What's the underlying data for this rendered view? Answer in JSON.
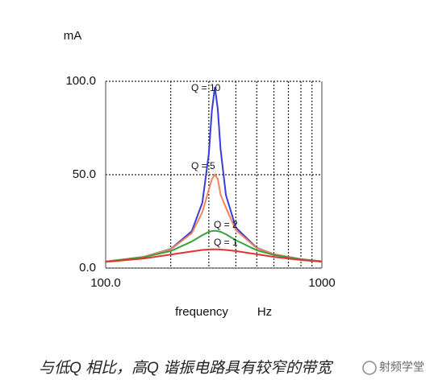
{
  "chart_data": {
    "type": "line",
    "ylabel": "mA",
    "xlabel": "frequency",
    "xunit": "Hz",
    "caption": "与低Q 相比，高Q 谐振电路具有较窄的带宽",
    "watermark": "射频学堂",
    "log_x": true,
    "x": [
      100,
      150,
      200,
      250,
      280,
      300,
      310,
      320,
      330,
      340,
      360,
      400,
      500,
      600,
      800,
      1000
    ],
    "series": [
      {
        "name": "Q = 10",
        "color": "#3b3bd8",
        "values": [
          3.5,
          6.0,
          10.2,
          19.7,
          35.0,
          61.2,
          84.4,
          97,
          85.1,
          63.6,
          39.0,
          21.7,
          10.8,
          7.4,
          4.8,
          3.6
        ]
      },
      {
        "name": "Q = 5",
        "color": "#f0845a",
        "values": [
          3.5,
          6.0,
          10.0,
          18.6,
          29.9,
          42.0,
          47.7,
          50,
          47.8,
          39.3,
          32.3,
          20.3,
          10.6,
          7.4,
          4.7,
          3.6
        ]
      },
      {
        "name": "Q = 2",
        "color": "#3ca03c",
        "values": [
          3.4,
          5.8,
          9.1,
          14.2,
          17.6,
          19.4,
          19.8,
          20,
          19.8,
          19.4,
          18.1,
          14.9,
          9.5,
          7.0,
          4.6,
          3.5
        ]
      },
      {
        "name": "Q = 1",
        "color": "#e03434",
        "values": [
          3.3,
          5.1,
          7.2,
          8.9,
          9.7,
          9.9,
          10.0,
          10,
          10.0,
          9.9,
          9.7,
          9.1,
          7.4,
          6.0,
          4.3,
          3.4
        ]
      }
    ],
    "xlim": [
      100,
      1000
    ],
    "ylim": [
      0,
      100
    ],
    "xticks": [
      {
        "value": 100,
        "label": "100.0"
      },
      {
        "value": 1000,
        "label": "1000"
      }
    ],
    "xminor": [
      200,
      300,
      400,
      500,
      600,
      700,
      800,
      900
    ],
    "yticks": [
      {
        "value": 0,
        "label": "0.0"
      },
      {
        "value": 50,
        "label": "50.0"
      },
      {
        "value": 100,
        "label": "100.0"
      }
    ],
    "grid": true
  }
}
